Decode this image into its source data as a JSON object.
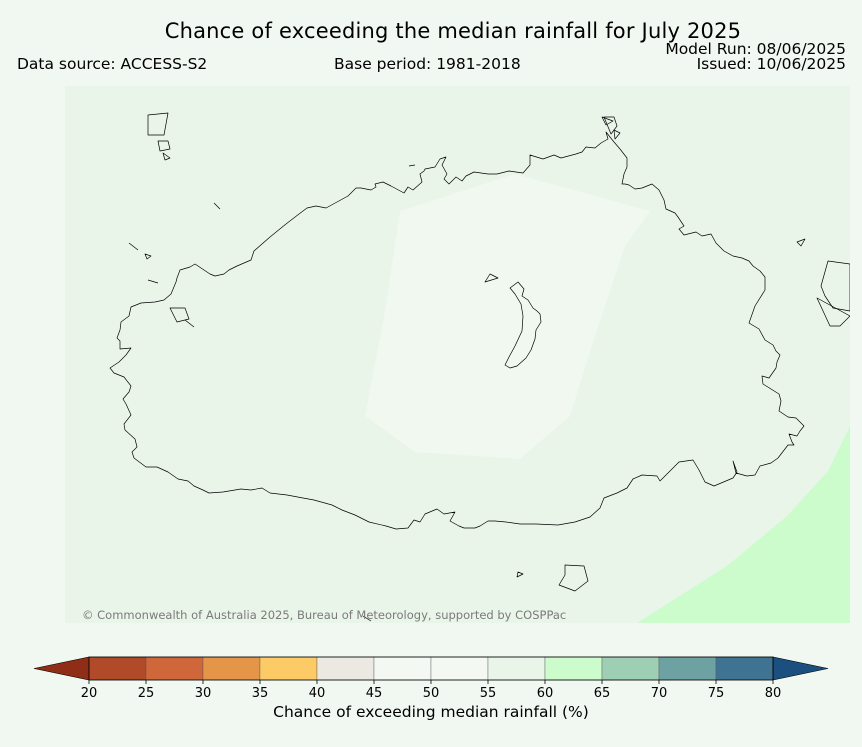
{
  "title": "Chance of exceeding the median rainfall for July 2025",
  "data_source": "Data source: ACCESS-S2",
  "base_period": "Base period: 1981-2018",
  "model_run": "Model Run: 08/06/2025",
  "issued": "Issued: 10/06/2025",
  "copyright": "© Commonwealth of Australia 2025, Bureau of Meteorology, supported by COSPPac",
  "colorbar": {
    "label": "Chance of exceeding median rainfall (%)",
    "ticks": [
      "20",
      "25",
      "30",
      "35",
      "40",
      "45",
      "50",
      "55",
      "60",
      "65",
      "70",
      "75",
      "80"
    ],
    "under_color": "#8f2d17",
    "over_color": "#1b4f80",
    "colors": [
      "#b04a28",
      "#d0673a",
      "#e59548",
      "#fdcb66",
      "#ebe9e2",
      "#f3f8f3",
      "#f3f8f3",
      "#e8f5e8",
      "#ccfbcc",
      "#9ecfb5",
      "#6ea1a2",
      "#3e7392"
    ]
  },
  "map": {
    "background_color": "#eaf5ea",
    "inner_zone_color": "#f0f8f0",
    "high_zone_color": "#ccfccc",
    "coast_color": "#000000"
  }
}
